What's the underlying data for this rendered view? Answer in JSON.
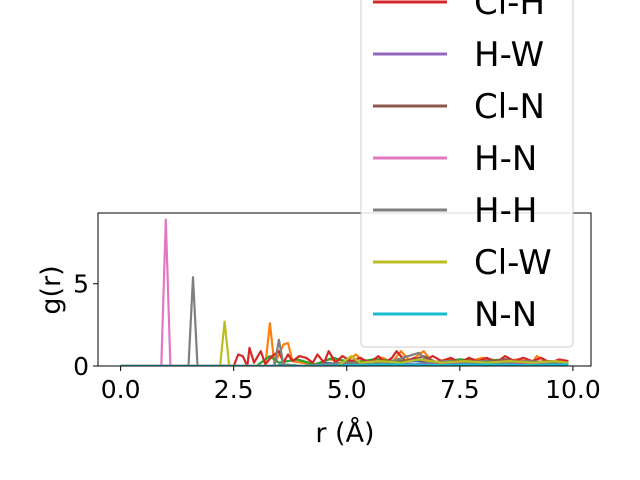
{
  "chart_data": {
    "type": "line",
    "xlabel": "r (Å)",
    "ylabel": "g(r)",
    "xlim": [
      -0.5,
      10.4
    ],
    "ylim": [
      0,
      9.3
    ],
    "xticks": [
      0.0,
      2.5,
      5.0,
      7.5,
      10.0
    ],
    "xtick_labels": [
      "0.0",
      "2.5",
      "5.0",
      "7.5",
      "10.0"
    ],
    "yticks": [
      0,
      5
    ],
    "ytick_labels": [
      "0",
      "5"
    ],
    "grid": false,
    "legend_position": "upper-right (extends above axes)",
    "series": [
      {
        "name": "",
        "color": "#1f77b4",
        "points": [
          [
            0,
            0
          ],
          [
            3.4,
            0
          ],
          [
            3.6,
            0.1
          ],
          [
            4.0,
            0
          ],
          [
            4.5,
            0.2
          ],
          [
            5.0,
            0.1
          ],
          [
            5.5,
            0.3
          ],
          [
            6.0,
            0.2
          ],
          [
            6.5,
            0.3
          ],
          [
            7.0,
            0.2
          ],
          [
            7.5,
            0.3
          ],
          [
            8.0,
            0.2
          ],
          [
            8.5,
            0.3
          ],
          [
            9.0,
            0.2
          ],
          [
            9.5,
            0.3
          ],
          [
            9.9,
            0.2
          ]
        ]
      },
      {
        "name": "",
        "color": "#ff7f0e",
        "points": [
          [
            0,
            0
          ],
          [
            3.2,
            0
          ],
          [
            3.3,
            2.6
          ],
          [
            3.4,
            0.1
          ],
          [
            3.6,
            1.3
          ],
          [
            3.7,
            1.4
          ],
          [
            3.8,
            0.3
          ],
          [
            4.0,
            0.2
          ],
          [
            4.3,
            0.1
          ],
          [
            4.6,
            0.4
          ],
          [
            5.0,
            0.3
          ],
          [
            5.2,
            0.7
          ],
          [
            5.4,
            0.2
          ],
          [
            5.8,
            0.5
          ],
          [
            6.0,
            0.2
          ],
          [
            6.2,
            0.9
          ],
          [
            6.4,
            0.3
          ],
          [
            6.7,
            0.9
          ],
          [
            6.9,
            0.2
          ],
          [
            7.2,
            0.4
          ],
          [
            7.6,
            0.2
          ],
          [
            8.0,
            0.5
          ],
          [
            8.4,
            0.3
          ],
          [
            8.8,
            0.4
          ],
          [
            9.1,
            0.2
          ],
          [
            9.2,
            0.6
          ],
          [
            9.4,
            0.3
          ],
          [
            9.9,
            0.2
          ]
        ]
      },
      {
        "name": "",
        "color": "#2ca02c",
        "points": [
          [
            0,
            0
          ],
          [
            3.0,
            0
          ],
          [
            3.3,
            0.6
          ],
          [
            3.5,
            0.2
          ],
          [
            3.9,
            0.4
          ],
          [
            4.3,
            0.1
          ],
          [
            4.7,
            0.5
          ],
          [
            5.1,
            0.2
          ],
          [
            5.6,
            0.4
          ],
          [
            6.1,
            0.3
          ],
          [
            6.6,
            0.4
          ],
          [
            7.0,
            0.2
          ],
          [
            7.5,
            0.4
          ],
          [
            8.0,
            0.3
          ],
          [
            8.5,
            0.4
          ],
          [
            9.0,
            0.2
          ],
          [
            9.5,
            0.3
          ],
          [
            9.9,
            0.2
          ]
        ]
      },
      {
        "name": "Cl-H",
        "color": "#d62728",
        "points": [
          [
            0,
            0
          ],
          [
            2.5,
            0
          ],
          [
            2.6,
            0.7
          ],
          [
            2.7,
            0.6
          ],
          [
            2.8,
            0
          ],
          [
            2.85,
            1.1
          ],
          [
            2.95,
            0.2
          ],
          [
            3.1,
            0.9
          ],
          [
            3.2,
            0.1
          ],
          [
            3.35,
            0.6
          ],
          [
            3.5,
            0.9
          ],
          [
            3.6,
            0.2
          ],
          [
            3.7,
            0.7
          ],
          [
            3.8,
            0.3
          ],
          [
            3.95,
            0.6
          ],
          [
            4.1,
            0.5
          ],
          [
            4.25,
            0.2
          ],
          [
            4.35,
            0.7
          ],
          [
            4.5,
            0.2
          ],
          [
            4.6,
            0.9
          ],
          [
            4.75,
            0.2
          ],
          [
            4.9,
            0.6
          ],
          [
            5.1,
            0.3
          ],
          [
            5.3,
            0.5
          ],
          [
            5.5,
            0.2
          ],
          [
            5.7,
            0.6
          ],
          [
            5.85,
            0.2
          ],
          [
            6.0,
            0.5
          ],
          [
            6.1,
            0.9
          ],
          [
            6.3,
            0.3
          ],
          [
            6.5,
            0.5
          ],
          [
            6.7,
            0.3
          ],
          [
            6.9,
            0.6
          ],
          [
            7.1,
            0.3
          ],
          [
            7.3,
            0.5
          ],
          [
            7.5,
            0.2
          ],
          [
            7.7,
            0.5
          ],
          [
            7.9,
            0.3
          ],
          [
            8.1,
            0.5
          ],
          [
            8.3,
            0.2
          ],
          [
            8.5,
            0.6
          ],
          [
            8.7,
            0.3
          ],
          [
            8.9,
            0.5
          ],
          [
            9.1,
            0.3
          ],
          [
            9.3,
            0.5
          ],
          [
            9.5,
            0.2
          ],
          [
            9.7,
            0.4
          ],
          [
            9.9,
            0.3
          ]
        ]
      },
      {
        "name": "H-W",
        "color": "#9467bd",
        "points": [
          [
            0,
            0
          ],
          [
            4.2,
            0
          ],
          [
            4.5,
            0.1
          ],
          [
            5.0,
            0.2
          ],
          [
            5.5,
            0.1
          ],
          [
            6.0,
            0.2
          ],
          [
            6.5,
            0.1
          ],
          [
            7.0,
            0.2
          ],
          [
            7.5,
            0.1
          ],
          [
            8.0,
            0.2
          ],
          [
            8.5,
            0.1
          ],
          [
            9.0,
            0.2
          ],
          [
            9.5,
            0.1
          ],
          [
            9.9,
            0.2
          ]
        ]
      },
      {
        "name": "Cl-N",
        "color": "#8c564b",
        "points": [
          [
            0,
            0
          ],
          [
            4.5,
            0
          ],
          [
            5.0,
            0.1
          ],
          [
            5.5,
            0.3
          ],
          [
            6.0,
            0.2
          ],
          [
            6.5,
            0.4
          ],
          [
            6.7,
            0.6
          ],
          [
            7.0,
            0.2
          ],
          [
            7.5,
            0.3
          ],
          [
            8.0,
            0.2
          ],
          [
            8.5,
            0.4
          ],
          [
            9.0,
            0.2
          ],
          [
            9.5,
            0.3
          ],
          [
            9.9,
            0.2
          ]
        ]
      },
      {
        "name": "H-N",
        "color": "#e377c2",
        "points": [
          [
            0,
            0
          ],
          [
            0.9,
            0
          ],
          [
            1.0,
            8.9
          ],
          [
            1.1,
            0
          ],
          [
            9.9,
            0
          ]
        ]
      },
      {
        "name": "H-H",
        "color": "#7f7f7f",
        "points": [
          [
            0,
            0
          ],
          [
            1.5,
            0
          ],
          [
            1.6,
            5.4
          ],
          [
            1.7,
            0
          ],
          [
            3.4,
            0
          ],
          [
            3.5,
            1.6
          ],
          [
            3.6,
            0.1
          ],
          [
            4.0,
            0
          ],
          [
            4.5,
            0.1
          ],
          [
            5.0,
            0.2
          ],
          [
            5.5,
            0.1
          ],
          [
            6.0,
            0.3
          ],
          [
            6.6,
            0.8
          ],
          [
            6.8,
            0.2
          ],
          [
            7.2,
            0.3
          ],
          [
            7.6,
            0.2
          ],
          [
            8.0,
            0.3
          ],
          [
            8.5,
            0.2
          ],
          [
            9.0,
            0.3
          ],
          [
            9.5,
            0.2
          ],
          [
            9.9,
            0.2
          ]
        ]
      },
      {
        "name": "Cl-W",
        "color": "#bcbd22",
        "points": [
          [
            0,
            0
          ],
          [
            2.2,
            0
          ],
          [
            2.3,
            2.7
          ],
          [
            2.4,
            0
          ],
          [
            4.8,
            0
          ],
          [
            5.1,
            0.6
          ],
          [
            5.3,
            0.2
          ],
          [
            5.7,
            0.3
          ],
          [
            6.2,
            0.2
          ],
          [
            6.6,
            0.4
          ],
          [
            7.1,
            0.2
          ],
          [
            7.6,
            0.3
          ],
          [
            8.1,
            0.2
          ],
          [
            8.6,
            0.3
          ],
          [
            9.1,
            0.2
          ],
          [
            9.6,
            0.3
          ],
          [
            9.9,
            0.2
          ]
        ]
      },
      {
        "name": "N-N",
        "color": "#17becf",
        "points": [
          [
            0,
            0
          ],
          [
            4.0,
            0
          ],
          [
            5.0,
            0.05
          ],
          [
            6.0,
            0.1
          ],
          [
            7.0,
            0.05
          ],
          [
            8.0,
            0.1
          ],
          [
            9.0,
            0.05
          ],
          [
            9.9,
            0.1
          ]
        ]
      }
    ]
  }
}
